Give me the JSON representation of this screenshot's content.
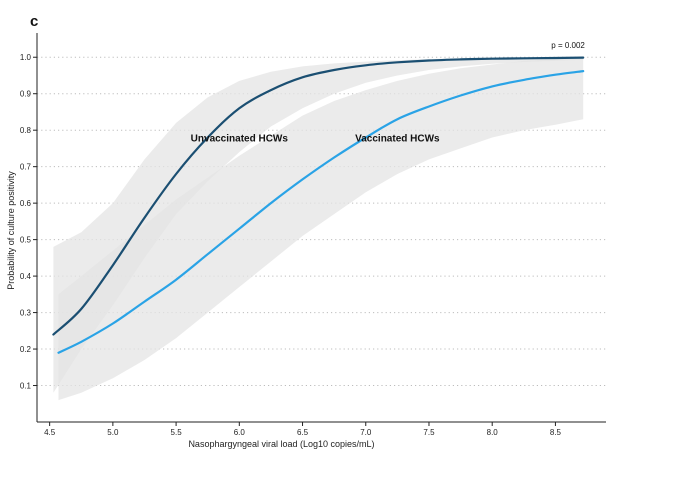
{
  "panel_label": "c",
  "chart_data": {
    "type": "line",
    "title": "",
    "xlabel": "Nasophargyngeal viral load (Log10 copies/mL)",
    "ylabel": "Probability of culture positivity",
    "xlim": [
      4.4,
      8.9
    ],
    "ylim": [
      0.0,
      1.05
    ],
    "xticks": [
      4.5,
      5.0,
      5.5,
      6.0,
      6.5,
      7.0,
      7.5,
      8.0,
      8.5
    ],
    "xtick_labels": [
      "4.5",
      "5.0",
      "5.5",
      "6.0",
      "6.5",
      "7.0",
      "7.5",
      "8.0",
      "8.5"
    ],
    "yticks": [
      0.1,
      0.2,
      0.3,
      0.4,
      0.5,
      0.6,
      0.7,
      0.8,
      0.9,
      1.0
    ],
    "ytick_labels": [
      "0.1",
      "0.2",
      "0.3",
      "0.4",
      "0.5",
      "0.6",
      "0.7",
      "0.8",
      "0.9",
      "1.0"
    ],
    "grid": "horizontal dotted",
    "annotation": "p = 0.002",
    "series": [
      {
        "name": "Unvaccinated HCWs",
        "color": "#1b4f72",
        "x": [
          4.53,
          4.75,
          5.0,
          5.25,
          5.5,
          5.75,
          6.0,
          6.25,
          6.5,
          6.75,
          7.0,
          7.25,
          7.5,
          7.75,
          8.0,
          8.25,
          8.5,
          8.72
        ],
        "y": [
          0.24,
          0.31,
          0.43,
          0.56,
          0.68,
          0.78,
          0.86,
          0.91,
          0.945,
          0.965,
          0.978,
          0.986,
          0.991,
          0.994,
          0.996,
          0.997,
          0.998,
          0.999
        ],
        "ci_low": [
          0.08,
          0.2,
          0.32,
          0.45,
          0.57,
          0.66,
          0.74,
          0.81,
          0.86,
          0.9,
          0.93,
          0.95,
          0.965,
          0.975,
          0.982,
          0.987,
          0.99,
          0.993
        ],
        "ci_high": [
          0.48,
          0.52,
          0.6,
          0.72,
          0.82,
          0.89,
          0.935,
          0.96,
          0.975,
          0.983,
          0.988,
          0.992,
          0.995,
          0.997,
          0.998,
          0.999,
          0.999,
          1.0
        ],
        "label_x": 6.0,
        "label_y": 0.78
      },
      {
        "name": "Vaccinated HCWs",
        "color": "#2aa3e6",
        "x": [
          4.57,
          4.75,
          5.0,
          5.25,
          5.5,
          5.75,
          6.0,
          6.25,
          6.5,
          6.75,
          7.0,
          7.25,
          7.5,
          7.75,
          8.0,
          8.25,
          8.5,
          8.72
        ],
        "y": [
          0.19,
          0.22,
          0.27,
          0.33,
          0.39,
          0.46,
          0.53,
          0.6,
          0.665,
          0.725,
          0.78,
          0.83,
          0.865,
          0.895,
          0.92,
          0.938,
          0.952,
          0.962
        ],
        "ci_low": [
          0.06,
          0.08,
          0.12,
          0.17,
          0.23,
          0.3,
          0.37,
          0.44,
          0.51,
          0.57,
          0.63,
          0.68,
          0.72,
          0.75,
          0.78,
          0.8,
          0.815,
          0.83
        ],
        "ci_high": [
          0.35,
          0.4,
          0.47,
          0.54,
          0.61,
          0.67,
          0.73,
          0.785,
          0.84,
          0.88,
          0.91,
          0.935,
          0.955,
          0.97,
          0.98,
          0.99,
          0.995,
          0.998
        ],
        "label_x": 7.25,
        "label_y": 0.78
      }
    ]
  },
  "colors": {
    "ci_band": "#e4e4e4",
    "grid": "#bdbdbd",
    "axis": "#222222"
  }
}
